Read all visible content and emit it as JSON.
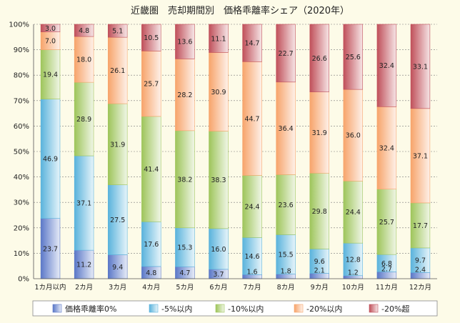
{
  "chart_data": {
    "type": "bar",
    "stacked": true,
    "title": "近畿圏　売却期間別　価格乖離率シェア（2020年）",
    "categories": [
      "1カ月以内",
      "2カ月",
      "3カ月",
      "4カ月",
      "5カ月",
      "6カ月",
      "7カ月",
      "8カ月",
      "9カ月",
      "10カ月",
      "11カ月",
      "12カ月"
    ],
    "ylim": [
      0,
      100
    ],
    "yticks": [
      "0%",
      "10%",
      "20%",
      "30%",
      "40%",
      "50%",
      "60%",
      "70%",
      "80%",
      "90%",
      "100%"
    ],
    "grid": true,
    "legend_position": "bottom",
    "series": [
      {
        "name": "価格乖離率0%",
        "color": "#5b78c8",
        "values": [
          23.7,
          11.2,
          9.4,
          4.8,
          4.7,
          3.7,
          1.6,
          1.8,
          2.1,
          1.2,
          2.7,
          2.4
        ]
      },
      {
        "name": "-5%以内",
        "color": "#5ab3dc",
        "values": [
          46.9,
          37.1,
          27.5,
          17.6,
          15.3,
          16.0,
          14.6,
          15.5,
          9.6,
          12.8,
          6.8,
          9.7
        ]
      },
      {
        "name": "-10%以内",
        "color": "#9ec55b",
        "values": [
          19.4,
          28.9,
          31.9,
          41.4,
          38.2,
          38.3,
          24.4,
          23.6,
          29.8,
          24.4,
          25.7,
          17.7
        ]
      },
      {
        "name": "-20%以内",
        "color": "#f7a46b",
        "values": [
          7.0,
          18.0,
          26.1,
          25.7,
          28.2,
          30.9,
          44.7,
          36.4,
          31.9,
          36.0,
          32.4,
          37.1
        ]
      },
      {
        "name": "-20%超",
        "color": "#c0505a",
        "values": [
          3.0,
          4.8,
          5.1,
          10.5,
          13.6,
          11.1,
          14.7,
          22.7,
          26.6,
          25.6,
          32.4,
          33.1
        ]
      }
    ]
  }
}
